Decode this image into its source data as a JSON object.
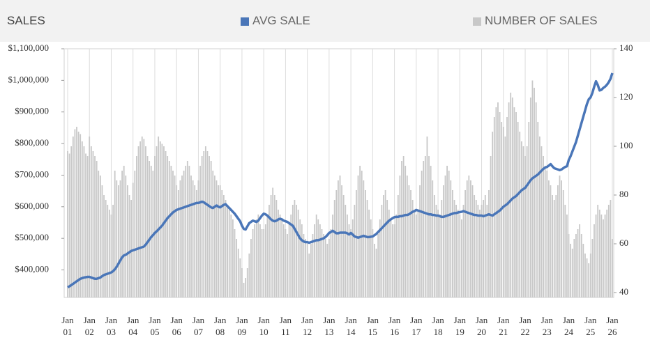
{
  "chart_data": {
    "type": "bar_line",
    "title": "SALES",
    "categories": [
      "Jan 01",
      null,
      null,
      null,
      null,
      null,
      null,
      null,
      null,
      null,
      null,
      null,
      "Jan 02",
      null,
      null,
      null,
      null,
      null,
      null,
      null,
      null,
      null,
      null,
      null,
      "Jan 03",
      null,
      null,
      null,
      null,
      null,
      null,
      null,
      null,
      null,
      null,
      null,
      "Jan 04",
      null,
      null,
      null,
      null,
      null,
      null,
      null,
      null,
      null,
      null,
      null,
      "Jan 05",
      null,
      null,
      null,
      null,
      null,
      null,
      null,
      null,
      null,
      null,
      null,
      "Jan 06",
      null,
      null,
      null,
      null,
      null,
      null,
      null,
      null,
      null,
      null,
      null,
      "Jan 07",
      null,
      null,
      null,
      null,
      null,
      null,
      null,
      null,
      null,
      null,
      null,
      "Jan 08",
      null,
      null,
      null,
      null,
      null,
      null,
      null,
      null,
      null,
      null,
      null,
      "Jan 09",
      null,
      null,
      null,
      null,
      null,
      null,
      null,
      null,
      null,
      null,
      null,
      "Jan 10",
      null,
      null,
      null,
      null,
      null,
      null,
      null,
      null,
      null,
      null,
      null,
      "Jan 11",
      null,
      null,
      null,
      null,
      null,
      null,
      null,
      null,
      null,
      null,
      null,
      "Jan 12",
      null,
      null,
      null,
      null,
      null,
      null,
      null,
      null,
      null,
      null,
      null,
      "Jan 13",
      null,
      null,
      null,
      null,
      null,
      null,
      null,
      null,
      null,
      null,
      null,
      "Jan 14",
      null,
      null,
      null,
      null,
      null,
      null,
      null,
      null,
      null,
      null,
      null,
      "Jan 15",
      null,
      null,
      null,
      null,
      null,
      null,
      null,
      null,
      null,
      null,
      null,
      "Jan 16",
      null,
      null,
      null,
      null,
      null,
      null,
      null,
      null,
      null,
      null,
      null,
      "Jan 17",
      null,
      null,
      null,
      null,
      null,
      null,
      null,
      null,
      null,
      null,
      null,
      "Jan 18",
      null,
      null,
      null,
      null,
      null,
      null,
      null,
      null,
      null,
      null,
      null,
      "Jan 19",
      null,
      null,
      null,
      null,
      null,
      null,
      null,
      null,
      null,
      null,
      null,
      "Jan 20",
      null,
      null,
      null,
      null,
      null,
      null,
      null,
      null,
      null,
      null,
      null,
      "Jan 21",
      null,
      null,
      null,
      null,
      null,
      null,
      null,
      null,
      null,
      null,
      null,
      "Jan 22",
      null,
      null,
      null,
      null,
      null,
      null,
      null,
      null,
      null,
      null,
      null,
      "Jan 23",
      null,
      null,
      null,
      null,
      null,
      null,
      null,
      null,
      null,
      null,
      null,
      "Jan 24",
      null,
      null,
      null,
      null,
      null,
      null,
      null,
      null,
      null,
      null,
      null,
      "Jan 25",
      null,
      null,
      null,
      null,
      null,
      null,
      null,
      null,
      null,
      null,
      null,
      "Jan 26"
    ],
    "series": [
      {
        "name": "AVG SALE",
        "type": "line",
        "color": "#4a76b8",
        "axis": "y",
        "values": [
          345000,
          348000,
          352000,
          356000,
          360000,
          364000,
          368000,
          372000,
          374000,
          376000,
          377000,
          378000,
          378000,
          376000,
          374000,
          372000,
          372000,
          374000,
          376000,
          380000,
          384000,
          386000,
          388000,
          390000,
          392000,
          396000,
          402000,
          410000,
          420000,
          430000,
          440000,
          446000,
          448000,
          452000,
          456000,
          460000,
          462000,
          464000,
          466000,
          468000,
          470000,
          472000,
          474000,
          480000,
          488000,
          496000,
          504000,
          510000,
          517000,
          522000,
          528000,
          534000,
          540000,
          548000,
          556000,
          564000,
          570000,
          576000,
          582000,
          586000,
          590000,
          592000,
          594000,
          596000,
          598000,
          600000,
          602000,
          604000,
          606000,
          608000,
          610000,
          612000,
          612000,
          614000,
          616000,
          614000,
          610000,
          606000,
          602000,
          598000,
          596000,
          600000,
          604000,
          600000,
          598000,
          602000,
          606000,
          608000,
          602000,
          596000,
          590000,
          584000,
          578000,
          570000,
          562000,
          554000,
          540000,
          530000,
          528000,
          538000,
          548000,
          552000,
          556000,
          554000,
          552000,
          556000,
          564000,
          572000,
          578000,
          576000,
          572000,
          566000,
          560000,
          556000,
          554000,
          556000,
          560000,
          562000,
          560000,
          556000,
          554000,
          552000,
          548000,
          544000,
          540000,
          530000,
          520000,
          510000,
          500000,
          494000,
          490000,
          488000,
          488000,
          486000,
          488000,
          490000,
          492000,
          494000,
          494000,
          496000,
          498000,
          500000,
          504000,
          510000,
          517000,
          520000,
          524000,
          520000,
          516000,
          516000,
          518000,
          518000,
          518000,
          518000,
          516000,
          512000,
          517000,
          512000,
          506000,
          504000,
          502000,
          504000,
          506000,
          508000,
          506000,
          504000,
          504000,
          505000,
          506000,
          510000,
          514000,
          520000,
          526000,
          532000,
          538000,
          544000,
          550000,
          556000,
          560000,
          564000,
          567000,
          568000,
          568000,
          570000,
          570000,
          572000,
          574000,
          574000,
          576000,
          580000,
          584000,
          586000,
          590000,
          588000,
          586000,
          584000,
          582000,
          580000,
          578000,
          576000,
          576000,
          574000,
          574000,
          572000,
          572000,
          570000,
          568000,
          568000,
          570000,
          572000,
          574000,
          576000,
          578000,
          580000,
          580000,
          582000,
          583000,
          584000,
          586000,
          584000,
          582000,
          580000,
          578000,
          576000,
          574000,
          574000,
          572000,
          572000,
          572000,
          570000,
          572000,
          574000,
          576000,
          574000,
          572000,
          576000,
          580000,
          584000,
          588000,
          594000,
          600000,
          604000,
          608000,
          614000,
          620000,
          626000,
          630000,
          634000,
          640000,
          646000,
          652000,
          656000,
          660000,
          668000,
          676000,
          684000,
          690000,
          694000,
          698000,
          702000,
          708000,
          714000,
          720000,
          724000,
          726000,
          730000,
          735000,
          728000,
          722000,
          720000,
          718000,
          716000,
          718000,
          722000,
          726000,
          728000,
          748000,
          760000,
          775000,
          790000,
          805000,
          825000,
          845000,
          865000,
          885000,
          905000,
          925000,
          940000,
          946000,
          960000,
          980000,
          997000,
          985000,
          968000,
          970000,
          976000,
          980000,
          986000,
          994000,
          1005000,
          1023000
        ]
      },
      {
        "name": "NUMBER OF SALES",
        "type": "bar",
        "color": "#c8c8c8",
        "axis": "y2",
        "values": [
          98,
          97,
          100,
          104,
          107,
          108,
          106,
          105,
          102,
          100,
          97,
          96,
          104,
          100,
          98,
          96,
          94,
          90,
          88,
          84,
          80,
          78,
          76,
          74,
          72,
          76,
          90,
          86,
          84,
          86,
          90,
          92,
          88,
          84,
          80,
          78,
          85,
          90,
          96,
          100,
          102,
          104,
          103,
          100,
          96,
          94,
          92,
          90,
          96,
          100,
          104,
          102,
          101,
          100,
          98,
          96,
          94,
          92,
          90,
          88,
          84,
          82,
          86,
          88,
          90,
          92,
          94,
          92,
          88,
          86,
          84,
          82,
          86,
          92,
          96,
          98,
          100,
          98,
          96,
          94,
          90,
          88,
          86,
          84,
          84,
          82,
          80,
          78,
          76,
          74,
          72,
          70,
          66,
          62,
          58,
          54,
          50,
          44,
          46,
          50,
          56,
          62,
          66,
          68,
          70,
          72,
          68,
          66,
          66,
          68,
          72,
          76,
          80,
          83,
          80,
          78,
          74,
          72,
          70,
          68,
          66,
          64,
          68,
          72,
          76,
          78,
          76,
          74,
          70,
          68,
          64,
          62,
          60,
          56,
          60,
          64,
          68,
          72,
          70,
          68,
          66,
          64,
          62,
          60,
          62,
          66,
          72,
          78,
          82,
          86,
          88,
          84,
          80,
          76,
          72,
          68,
          66,
          70,
          76,
          82,
          88,
          92,
          90,
          86,
          82,
          78,
          74,
          70,
          66,
          60,
          58,
          64,
          70,
          76,
          80,
          82,
          78,
          74,
          70,
          68,
          68,
          72,
          80,
          88,
          94,
          96,
          92,
          88,
          84,
          82,
          78,
          74,
          72,
          74,
          84,
          90,
          94,
          96,
          104,
          96,
          92,
          86,
          80,
          76,
          74,
          72,
          78,
          84,
          88,
          92,
          90,
          86,
          82,
          78,
          76,
          74,
          72,
          70,
          76,
          82,
          86,
          88,
          86,
          84,
          80,
          78,
          76,
          74,
          76,
          78,
          80,
          76,
          82,
          96,
          106,
          112,
          116,
          118,
          114,
          110,
          108,
          104,
          112,
          118,
          122,
          120,
          116,
          114,
          110,
          106,
          102,
          100,
          96,
          100,
          110,
          120,
          127,
          124,
          118,
          110,
          104,
          100,
          96,
          92,
          90,
          86,
          84,
          80,
          78,
          80,
          84,
          88,
          86,
          82,
          76,
          72,
          64,
          60,
          58,
          62,
          64,
          66,
          68,
          64,
          60,
          56,
          54,
          52,
          56,
          62,
          68,
          72,
          76,
          74,
          72,
          70,
          72,
          74,
          76,
          78,
          62
        ]
      }
    ],
    "ylim": [
      313000,
      1100000
    ],
    "yticks": [
      {
        "value": 400000,
        "label": "$400,000"
      },
      {
        "value": 500000,
        "label": "$500,000"
      },
      {
        "value": 600000,
        "label": "$600,000"
      },
      {
        "value": 700000,
        "label": "$700,000"
      },
      {
        "value": 800000,
        "label": "$800,000"
      },
      {
        "value": 900000,
        "label": "$900,000"
      },
      {
        "value": 1000000,
        "label": "$1,000,000"
      },
      {
        "value": 1100000,
        "label": "$1,100,000"
      }
    ],
    "y2lim": [
      38,
      140
    ],
    "y2ticks": [
      40,
      60,
      80,
      100,
      120,
      140
    ],
    "grid": "x"
  }
}
